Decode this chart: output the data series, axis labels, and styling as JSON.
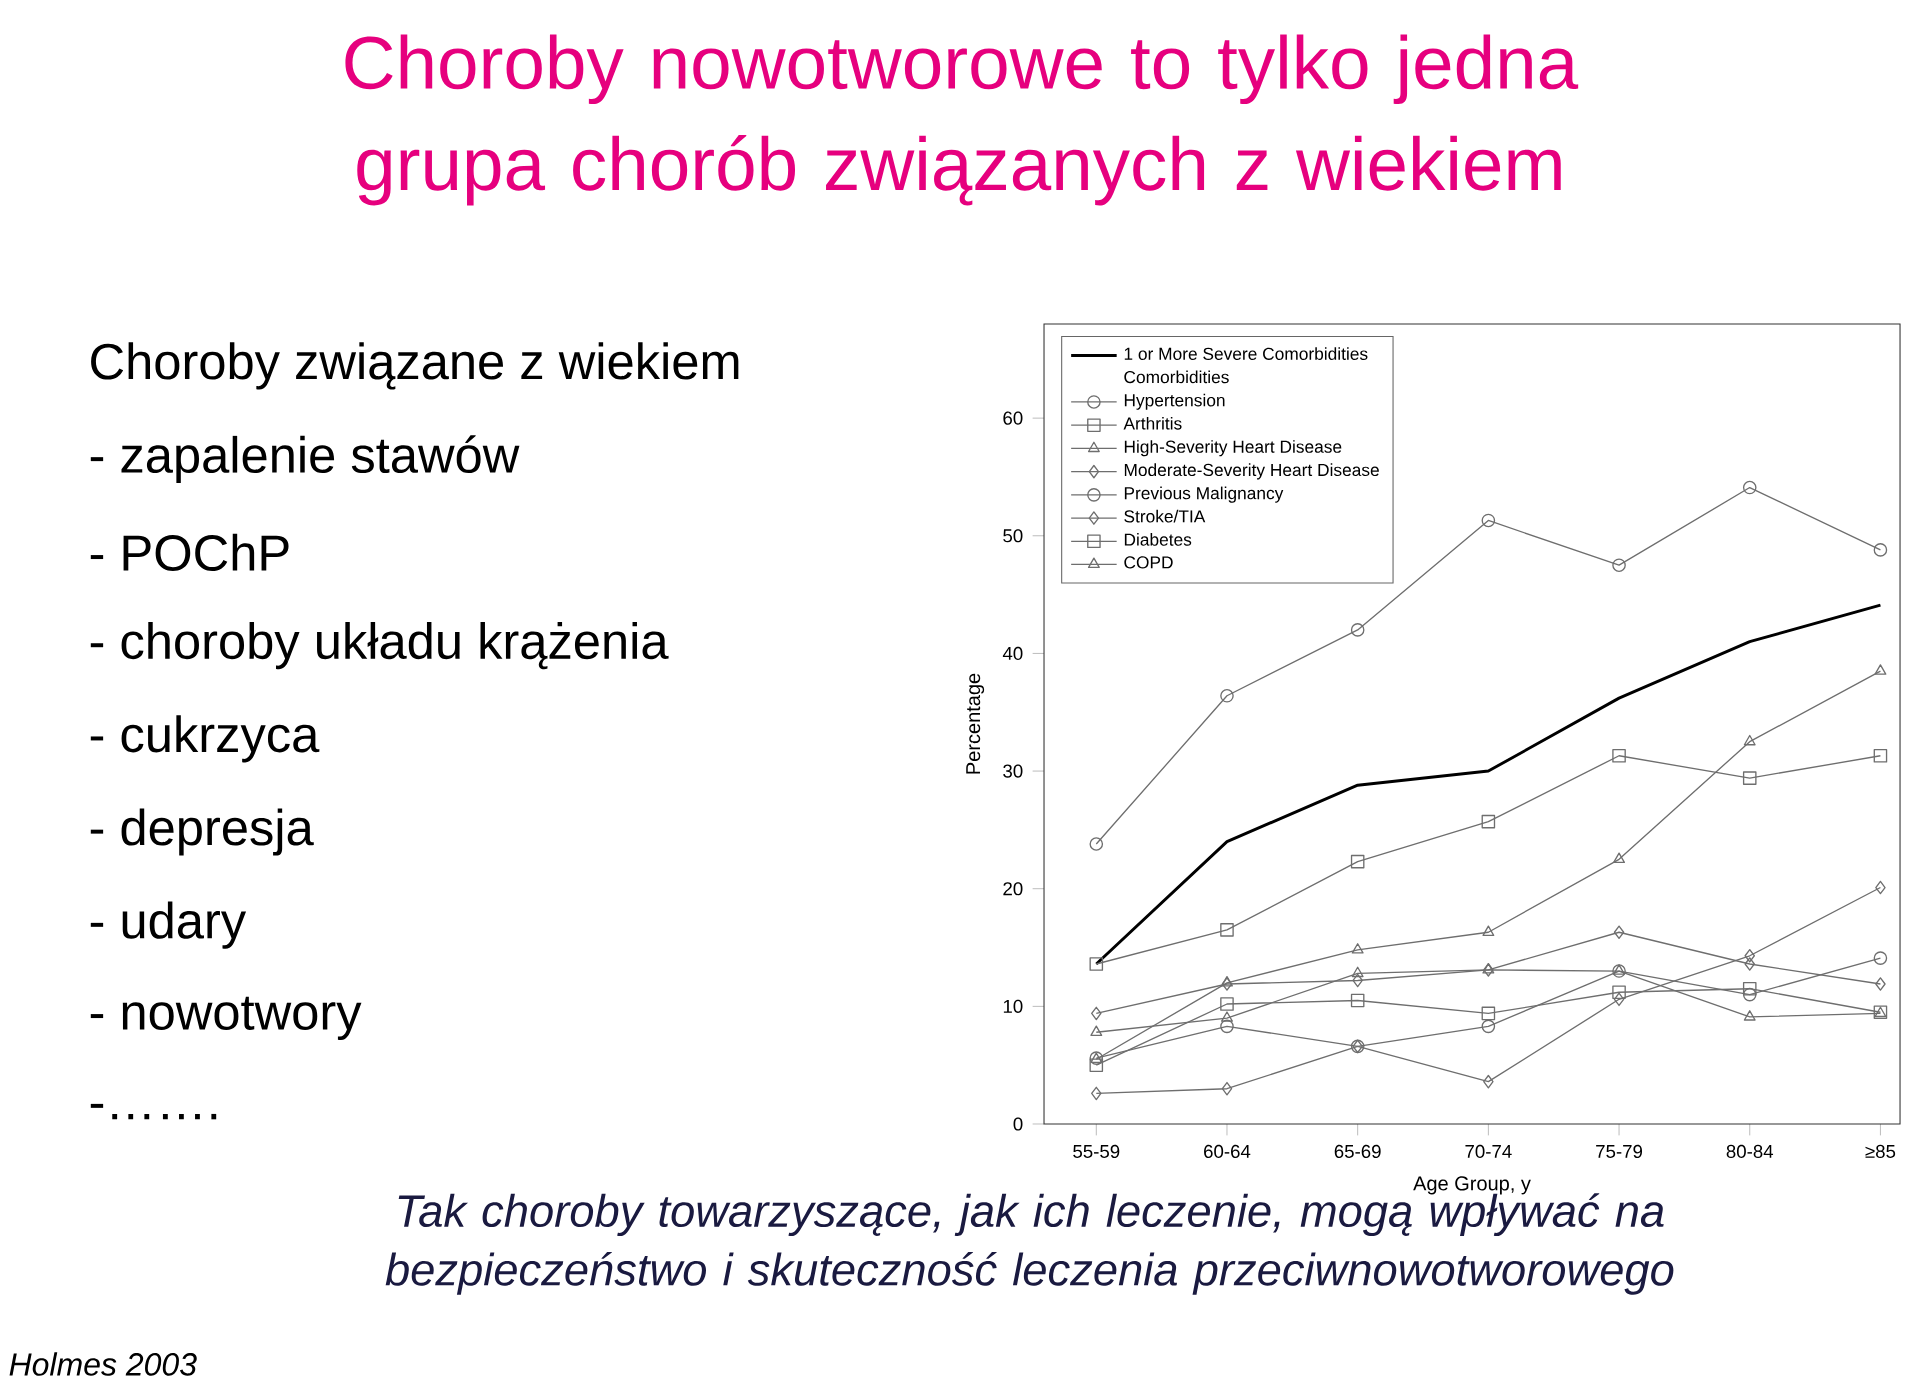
{
  "chart_data": {
    "type": "line",
    "title": "Choroby nowotworowe to tylko jedna grupa chorób związanych z wiekiem",
    "xlabel": "Age Group, y",
    "ylabel": "Percentage",
    "legend_title": "Comorbidities",
    "categories": [
      "55-59",
      "60-64",
      "65-69",
      "70-74",
      "75-79",
      "80-84",
      "≥85"
    ],
    "ylim": [
      0,
      68
    ],
    "yticks": [
      0,
      10,
      20,
      30,
      40,
      50,
      60
    ],
    "legend": "top left",
    "grid": false,
    "series": [
      {
        "name": "1 or More Severe Comorbidities",
        "color": "#000000",
        "marker": "none",
        "values": [
          13.6,
          24.0,
          28.8,
          30.0,
          36.2,
          41.0,
          44.1
        ]
      },
      {
        "name": "Hypertension",
        "color": "#6e6e6e",
        "marker": "circle",
        "values": [
          23.8,
          36.4,
          42.0,
          51.3,
          47.5,
          54.1,
          48.8
        ]
      },
      {
        "name": "Arthritis",
        "color": "#6e6e6e",
        "marker": "square",
        "values": [
          13.6,
          16.5,
          22.3,
          25.7,
          31.3,
          29.4,
          31.3
        ]
      },
      {
        "name": "High-Severity Heart Disease",
        "color": "#6e6e6e",
        "marker": "triangle",
        "values": [
          5.5,
          12.0,
          14.8,
          16.3,
          22.5,
          32.5,
          38.5
        ]
      },
      {
        "name": "Moderate-Severity Heart Disease",
        "color": "#6e6e6e",
        "marker": "diamond",
        "values": [
          9.4,
          11.9,
          12.2,
          13.1,
          16.3,
          13.6,
          11.9
        ]
      },
      {
        "name": "Previous Malignancy",
        "color": "#6e6e6e",
        "marker": "circle",
        "values": [
          5.6,
          8.3,
          6.6,
          8.3,
          13.0,
          11.0,
          14.1
        ]
      },
      {
        "name": "Stroke/TIA",
        "color": "#6e6e6e",
        "marker": "diamond",
        "values": [
          2.6,
          3.0,
          6.6,
          3.6,
          10.6,
          14.3,
          20.1
        ]
      },
      {
        "name": "Diabetes",
        "color": "#6e6e6e",
        "marker": "square",
        "values": [
          5.0,
          10.2,
          10.5,
          9.4,
          11.2,
          11.5,
          9.5
        ]
      },
      {
        "name": "COPD",
        "color": "#6e6e6e",
        "marker": "triangle",
        "values": [
          7.8,
          9.0,
          12.8,
          13.1,
          13.0,
          9.1,
          9.4
        ]
      }
    ],
    "annotations": [
      "Choroby związane z wiekiem",
      "- zapalenie stawów",
      "- POChP",
      "- choroby układu krążenia",
      "- cukrzyca",
      "- depresja",
      "- udary",
      "- nowotwory",
      "-…….",
      "Tak choroby towarzyszące, jak ich leczenie, mogą wpływać na bezpieczeństwo i skuteczność leczenia przeciwnowotworowego",
      "Holmes 2003"
    ]
  }
}
